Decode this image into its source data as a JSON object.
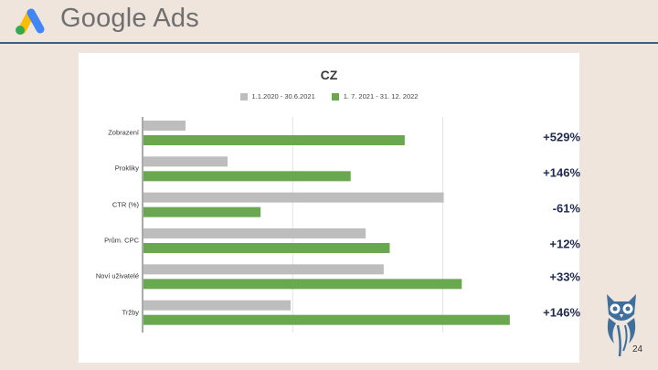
{
  "header": {
    "logo_text": "Google Ads",
    "logo_icon": "google-ads-logo-icon",
    "line_color": "#3d5f83"
  },
  "chart_data": {
    "type": "bar",
    "orientation": "horizontal",
    "title": "CZ",
    "categories": [
      "Zobrazení",
      "Prokliky",
      "CTR (%)",
      "Prům. CPC",
      "Noví uživatelé",
      "Tržby"
    ],
    "series": [
      {
        "name": "1.1.2020 - 30.6.2021",
        "color": "#bdbdbd",
        "values": [
          14,
          28,
          100,
          74,
          80,
          49
        ]
      },
      {
        "name": "1. 7. 2021 - 31. 12. 2022",
        "color": "#6aa84f",
        "values": [
          87,
          69,
          39,
          82,
          106,
          122
        ]
      }
    ],
    "xlim": [
      0,
      140
    ],
    "grid": true,
    "legend": "top-center",
    "annotations": [
      "+529%",
      "+146%",
      "-61%",
      "+12%",
      "+33%",
      "+146%"
    ]
  },
  "footer": {
    "page_number": "24",
    "owl_icon": "owl-logo-icon"
  }
}
